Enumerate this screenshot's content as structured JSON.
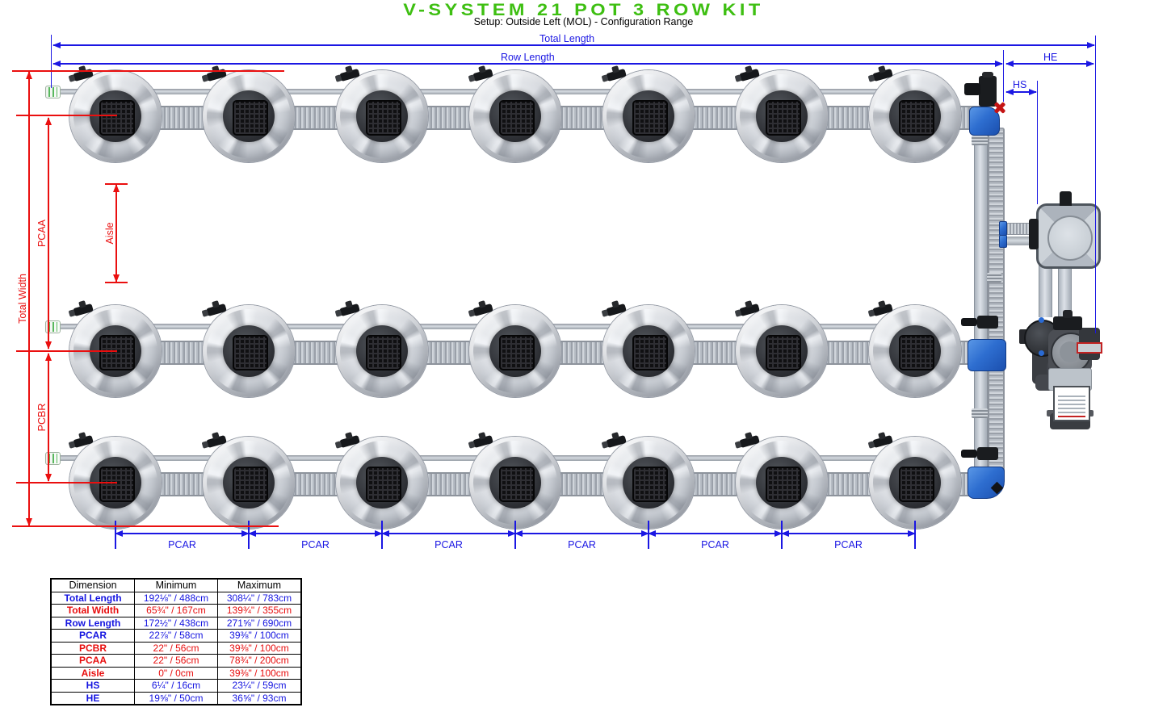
{
  "title": "V-SYSTEM 21 POT 3 ROW KIT",
  "subtitle": "Setup: Outside Left (MOL) - Configuration Range",
  "colors": {
    "accent_green": "#3ebf12",
    "dim_blue": "#1b17e3",
    "dim_red": "#ea0f0f"
  },
  "system": {
    "rows": 3,
    "pots_per_row": 7,
    "total_pots": 21
  },
  "labels": {
    "total_length": "Total Length",
    "row_length": "Row Length",
    "he": "HE",
    "hs": "HS",
    "total_width": "Total Width",
    "pcaa": "PCAA",
    "aisle": "Aisle",
    "pcbr": "PCBR",
    "pcar": "PCAR"
  },
  "table": {
    "headers": [
      "Dimension",
      "Minimum",
      "Maximum"
    ],
    "rows": [
      {
        "name": "Total Length",
        "min": "192⅛\" / 488cm",
        "max": "308¼\" / 783cm",
        "color": "blue"
      },
      {
        "name": "Total Width",
        "min": "65¾\" / 167cm",
        "max": "139¾\" / 355cm",
        "color": "red"
      },
      {
        "name": "Row Length",
        "min": "172½\" / 438cm",
        "max": "271⅝\" / 690cm",
        "color": "blue"
      },
      {
        "name": "PCAR",
        "min": "22⅞\" / 58cm",
        "max": "39⅜\" / 100cm",
        "color": "blue"
      },
      {
        "name": "PCBR",
        "min": "22\" / 56cm",
        "max": "39⅜\" / 100cm",
        "color": "red"
      },
      {
        "name": "PCAA",
        "min": "22\" / 56cm",
        "max": "78¾\" / 200cm",
        "color": "red"
      },
      {
        "name": "Aisle",
        "min": "0\" / 0cm",
        "max": "39⅜\" / 100cm",
        "color": "red"
      },
      {
        "name": "HS",
        "min": "6¼\" / 16cm",
        "max": "23¼\" / 59cm",
        "color": "blue"
      },
      {
        "name": "HE",
        "min": "19⅝\" / 50cm",
        "max": "36⅝\" / 93cm",
        "color": "blue"
      }
    ]
  }
}
